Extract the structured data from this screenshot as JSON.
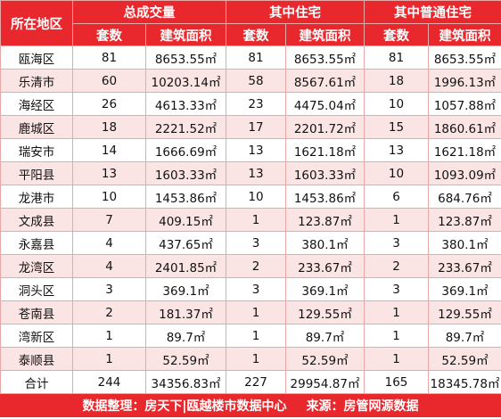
{
  "header": {
    "region": "所在地区",
    "groups": [
      "总成交量",
      "其中住宅",
      "其中普通住宅"
    ],
    "sub": [
      "套数",
      "建筑面积",
      "套数",
      "建筑面积",
      "套数",
      "建筑面积"
    ]
  },
  "rows": [
    [
      "瓯海区",
      "81",
      "8653.55㎡",
      "81",
      "8653.55㎡",
      "81",
      "8653.55㎡"
    ],
    [
      "乐清市",
      "60",
      "10203.14㎡",
      "58",
      "8567.61㎡",
      "18",
      "1996.13㎡"
    ],
    [
      "海经区",
      "26",
      "4613.33㎡",
      "23",
      "4475.04㎡",
      "10",
      "1057.88㎡"
    ],
    [
      "鹿城区",
      "18",
      "2221.52㎡",
      "17",
      "2201.72㎡",
      "15",
      "1860.61㎡"
    ],
    [
      "瑞安市",
      "14",
      "1666.69㎡",
      "13",
      "1621.18㎡",
      "13",
      "1621.18㎡"
    ],
    [
      "平阳县",
      "13",
      "1603.33㎡",
      "13",
      "1603.33㎡",
      "10",
      "1093.09㎡"
    ],
    [
      "龙港市",
      "10",
      "1453.86㎡",
      "10",
      "1453.86㎡",
      "6",
      "684.76㎡"
    ],
    [
      "文成县",
      "7",
      "409.15㎡",
      "1",
      "123.87㎡",
      "1",
      "123.87㎡"
    ],
    [
      "永嘉县",
      "4",
      "437.65㎡",
      "3",
      "380.1㎡",
      "3",
      "380.1㎡"
    ],
    [
      "龙湾区",
      "4",
      "2401.85㎡",
      "2",
      "233.67㎡",
      "2",
      "233.67㎡"
    ],
    [
      "洞头区",
      "3",
      "369.1㎡",
      "3",
      "369.1㎡",
      "3",
      "369.1㎡"
    ],
    [
      "苍南县",
      "2",
      "181.37㎡",
      "1",
      "129.55㎡",
      "1",
      "129.55㎡"
    ],
    [
      "湾新区",
      "1",
      "89.7㎡",
      "1",
      "89.7㎡",
      "1",
      "89.7㎡"
    ],
    [
      "泰顺县",
      "1",
      "52.59㎡",
      "1",
      "52.59㎡",
      "1",
      "52.59㎡"
    ]
  ],
  "total": [
    "合计",
    "244",
    "34356.83㎡",
    "227",
    "29954.87㎡",
    "165",
    "18345.78㎡"
  ],
  "footer": {
    "left": "数据整理：房天下|瓯越楼市数据中心",
    "right": "来源：房管网源数据"
  }
}
